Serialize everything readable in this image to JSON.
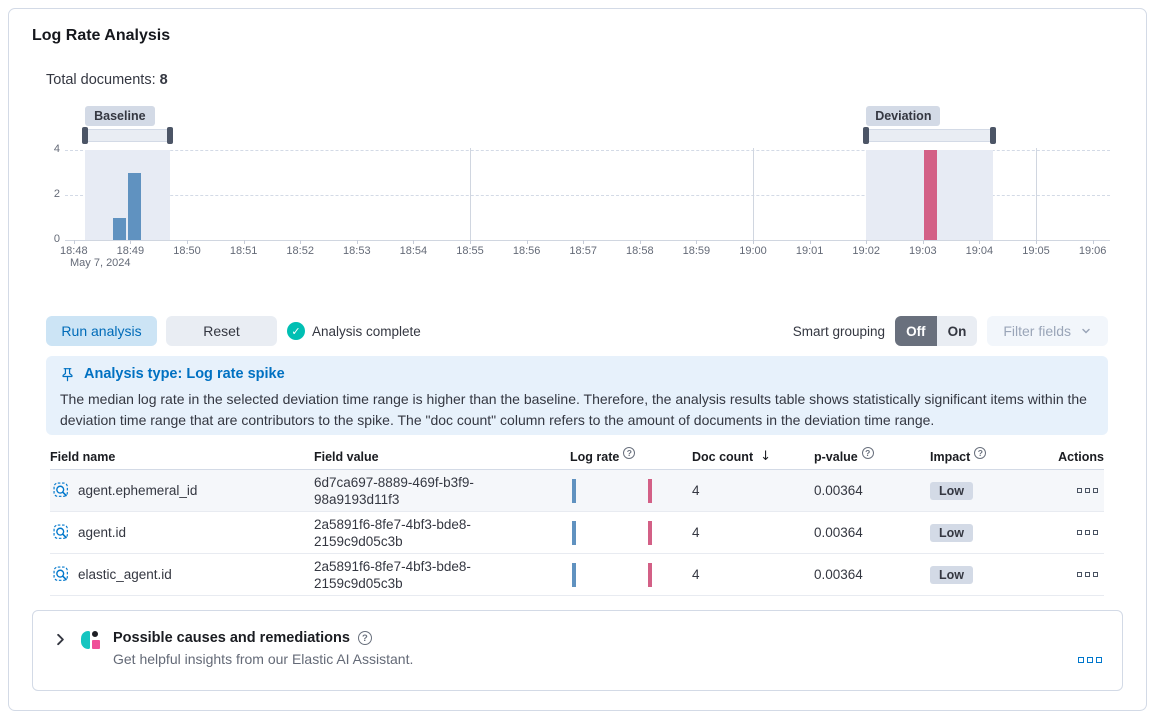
{
  "header": {
    "title": "Log Rate Analysis",
    "total_documents_label": "Total documents:",
    "total_documents_value": "8"
  },
  "chart": {
    "baseline_label": "Baseline",
    "deviation_label": "Deviation",
    "date_label": "May 7, 2024",
    "y_ticks": [
      "4",
      "2",
      "0"
    ],
    "x_ticks": [
      "18:48",
      "18:49",
      "18:50",
      "18:51",
      "18:52",
      "18:53",
      "18:54",
      "18:55",
      "18:56",
      "18:57",
      "18:58",
      "18:59",
      "19:00",
      "19:01",
      "19:02",
      "19:03",
      "19:04",
      "19:05",
      "19:06"
    ],
    "v_gridline_minutes": [
      7,
      12,
      17
    ],
    "baseline_window": {
      "start": 0.2,
      "end": 1.7
    },
    "deviation_window": {
      "start": 14.0,
      "end": 16.24
    },
    "bars": [
      {
        "series": "baseline",
        "start": 0.69,
        "end": 0.92,
        "value": 1
      },
      {
        "series": "baseline",
        "start": 0.96,
        "end": 1.19,
        "value": 3
      },
      {
        "series": "deviation",
        "start": 15.02,
        "end": 15.25,
        "value": 4
      }
    ],
    "chart_data": {
      "type": "bar",
      "title": "",
      "xlabel": "",
      "ylabel": "",
      "ylim": [
        0,
        4
      ],
      "x_range": [
        "18:48",
        "19:06"
      ],
      "x": [
        "18:48:45",
        "18:49:00",
        "19:03:00"
      ],
      "series": [
        {
          "name": "baseline",
          "values": [
            1,
            3,
            0
          ]
        },
        {
          "name": "deviation",
          "values": [
            0,
            0,
            4
          ]
        }
      ],
      "colors": {
        "baseline": "#6092C0",
        "deviation": "#D36086"
      },
      "grid": "horizontal dashed at 2 and 4, vertical solid every 5 min",
      "legend": "none"
    }
  },
  "controls": {
    "run_label": "Run analysis",
    "reset_label": "Reset",
    "status_label": "Analysis complete",
    "smart_grouping_label": "Smart grouping",
    "off_label": "Off",
    "on_label": "On",
    "filter_fields_label": "Filter fields"
  },
  "callout": {
    "title": "Analysis type: Log rate spike",
    "body": "The median log rate in the selected deviation time range is higher than the baseline. Therefore, the analysis results table shows statistically significant items within the deviation time range that are contributors to the spike. The \"doc count\" column refers to the amount of documents in the deviation time range."
  },
  "table": {
    "headers": {
      "field_name": "Field name",
      "field_value": "Field value",
      "log_rate": "Log rate",
      "doc_count": "Doc count",
      "p_value": "p-value",
      "impact": "Impact",
      "actions": "Actions"
    },
    "rows": [
      {
        "field_name": "agent.ephemeral_id",
        "field_value": "6d7ca697-8889-469f-b3f9-98a9193d11f3",
        "doc_count": "4",
        "p_value": "0.00364",
        "impact": "Low"
      },
      {
        "field_name": "agent.id",
        "field_value": "2a5891f6-8fe7-4bf3-bde8-2159c9d05c3b",
        "doc_count": "4",
        "p_value": "0.00364",
        "impact": "Low"
      },
      {
        "field_name": "elastic_agent.id",
        "field_value": "2a5891f6-8fe7-4bf3-bde8-2159c9d05c3b",
        "doc_count": "4",
        "p_value": "0.00364",
        "impact": "Low"
      }
    ]
  },
  "footer": {
    "title": "Possible causes and remediations",
    "subtitle": "Get helpful insights from our Elastic AI Assistant."
  }
}
